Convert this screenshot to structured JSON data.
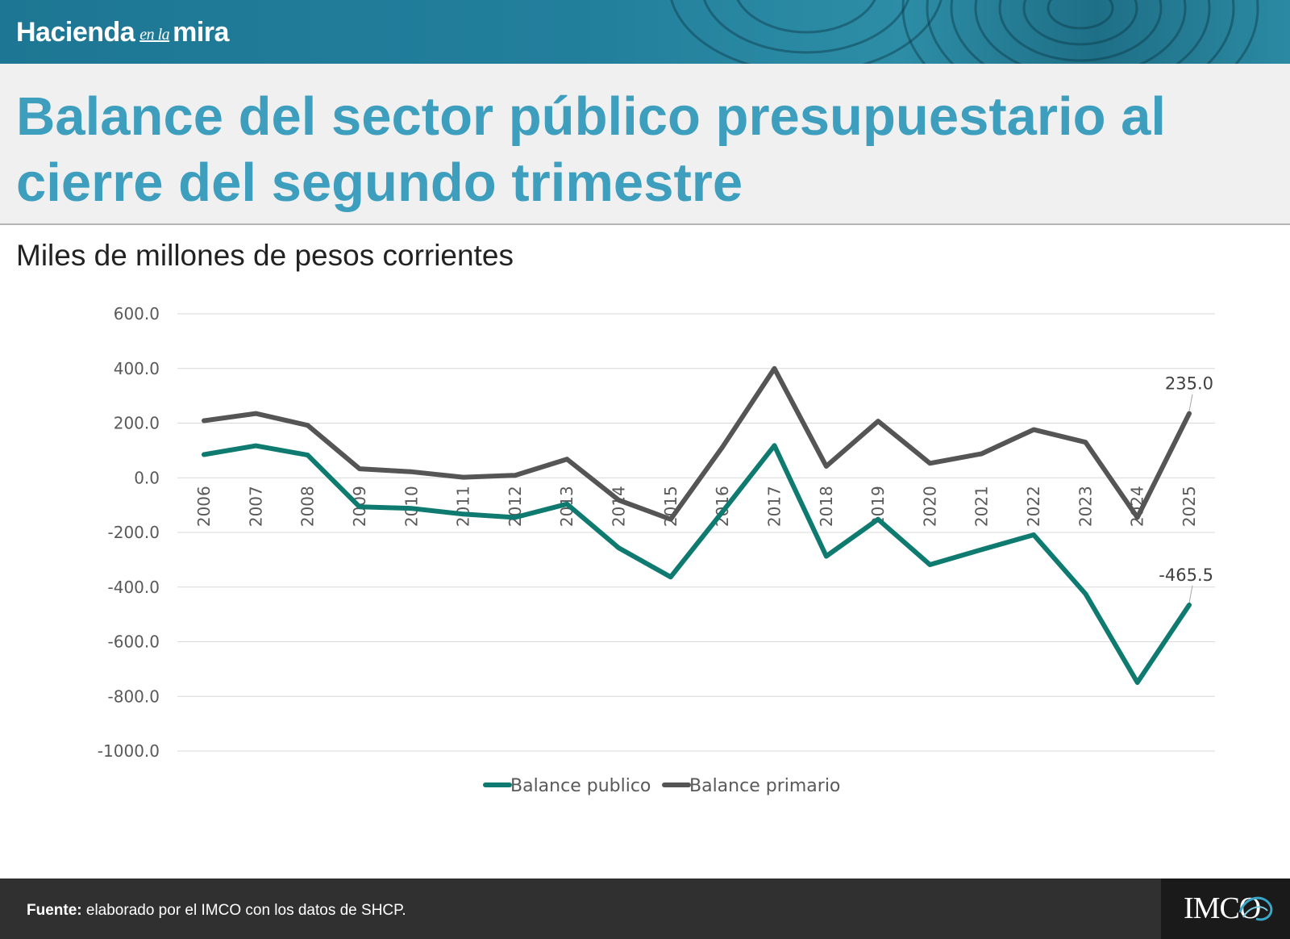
{
  "header": {
    "brand_left": "Hacienda",
    "brand_mid": "en la",
    "brand_right": "mira",
    "title": "Balance del sector público presupuestario al cierre del segundo trimestre",
    "subtitle": "Miles de millones de pesos corrientes"
  },
  "footer": {
    "source_label": "Fuente:",
    "source_text": " elaborado por el IMCO con los datos de SHCP.",
    "logo_text": "IMCO"
  },
  "colors": {
    "title": "#3d9ebd",
    "balance_publico": "#0f7b70",
    "balance_primario": "#555555",
    "banner": "#227f9c",
    "footer": "#303030"
  },
  "chart_data": {
    "type": "line",
    "x": [
      "2006",
      "2007",
      "2008",
      "2009",
      "2010",
      "2011",
      "2012",
      "2013",
      "2014",
      "2015",
      "2016",
      "2017",
      "2018",
      "2019",
      "2020",
      "2021",
      "2022",
      "2023",
      "2024",
      "2025"
    ],
    "series": [
      {
        "name": "Balance publico",
        "values": [
          85,
          117,
          83,
          -106,
          -112,
          -133,
          -145,
          -96,
          -257,
          -363,
          -124,
          118,
          -287,
          -152,
          -318,
          -263,
          -209,
          -425,
          -749,
          -465.5
        ]
      },
      {
        "name": "Balance primario",
        "values": [
          209,
          235,
          192,
          33,
          22,
          2,
          9,
          68,
          -82,
          -152,
          113,
          400,
          42,
          207,
          53,
          88,
          176,
          130,
          -145,
          235.0
        ]
      }
    ],
    "data_labels": [
      {
        "series": "Balance primario",
        "x": "2025",
        "text": "235.0"
      },
      {
        "series": "Balance publico",
        "x": "2025",
        "text": "-465.5"
      }
    ],
    "y_ticks": [
      "600.0",
      "400.0",
      "200.0",
      "0.0",
      "-200.0",
      "-400.0",
      "-600.0",
      "-800.0",
      "-1000.0"
    ],
    "ylim": [
      -1000,
      600
    ],
    "grid": true,
    "legend_position": "bottom"
  }
}
